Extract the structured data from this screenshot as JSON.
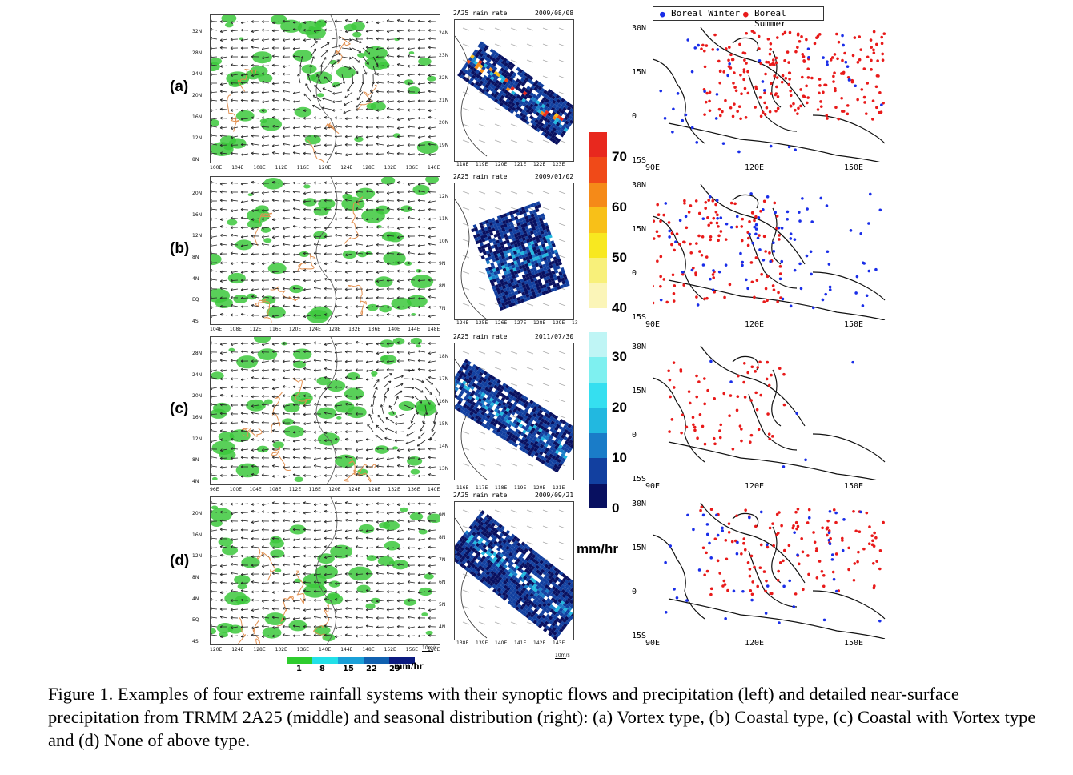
{
  "rows": [
    {
      "label": "(a)",
      "date": "2009/08/08"
    },
    {
      "label": "(b)",
      "date": "2009/01/02"
    },
    {
      "label": "(c)",
      "date": "2011/07/30"
    },
    {
      "label": "(d)",
      "date": "2009/09/21"
    }
  ],
  "mid_title": "2A25 rain rate",
  "left_ticks": {
    "a": {
      "y": [
        "32N",
        "28N",
        "24N",
        "20N",
        "16N",
        "12N",
        "8N"
      ],
      "x": [
        "100E",
        "104E",
        "108E",
        "112E",
        "116E",
        "120E",
        "124E",
        "128E",
        "132E",
        "136E",
        "140E"
      ]
    },
    "b": {
      "y": [
        "20N",
        "16N",
        "12N",
        "8N",
        "4N",
        "EQ",
        "4S"
      ],
      "x": [
        "104E",
        "108E",
        "112E",
        "116E",
        "120E",
        "124E",
        "128E",
        "132E",
        "136E",
        "140E",
        "144E",
        "148E"
      ]
    },
    "c": {
      "y": [
        "28N",
        "24N",
        "20N",
        "16N",
        "12N",
        "8N",
        "4N"
      ],
      "x": [
        "96E",
        "100E",
        "104E",
        "108E",
        "112E",
        "116E",
        "120E",
        "124E",
        "128E",
        "132E",
        "136E",
        "140E"
      ]
    },
    "d": {
      "y": [
        "20N",
        "16N",
        "12N",
        "8N",
        "4N",
        "EQ",
        "4S"
      ],
      "x": [
        "120E",
        "124E",
        "128E",
        "132E",
        "136E",
        "140E",
        "144E",
        "148E",
        "152E",
        "156E",
        "160E"
      ]
    }
  },
  "mid_ticks": {
    "a": {
      "y": [
        "24N",
        "23N",
        "22N",
        "21N",
        "20N",
        "19N"
      ],
      "x": [
        "118E",
        "119E",
        "120E",
        "121E",
        "122E",
        "123E"
      ]
    },
    "b": {
      "y": [
        "12N",
        "11N",
        "10N",
        "9N",
        "8N",
        "7N"
      ],
      "x": [
        "124E",
        "125E",
        "126E",
        "127E",
        "128E",
        "129E",
        "13"
      ]
    },
    "c": {
      "y": [
        "18N",
        "17N",
        "16N",
        "15N",
        "14N",
        "13N"
      ],
      "x": [
        "116E",
        "117E",
        "118E",
        "119E",
        "120E",
        "121E"
      ]
    },
    "d": {
      "y": [
        "9N",
        "8N",
        "7N",
        "6N",
        "5N",
        "4N"
      ],
      "x": [
        "138E",
        "139E",
        "140E",
        "141E",
        "142E",
        "143E"
      ]
    }
  },
  "wind_legend": {
    "unit": "10m/s"
  },
  "left_colorbar": {
    "ticks": [
      "1",
      "8",
      "15",
      "22",
      "29"
    ],
    "unit": "mm/hr",
    "colors": [
      "#2ecc2e",
      "#22e0e8",
      "#1aa0d8",
      "#1060b0",
      "#0a1a80"
    ]
  },
  "right_colorbar": {
    "upper_ticks": [
      "70",
      "60",
      "50",
      "40"
    ],
    "lower_ticks": [
      "30",
      "20",
      "10",
      "0"
    ],
    "unit": "mm/hr",
    "upper_colors": [
      "#e8281e",
      "#f04a18",
      "#f58a18",
      "#f8c018",
      "#f8e820",
      "#f8f07a",
      "#fbf5b8"
    ],
    "lower_colors": [
      "#bff5f5",
      "#7ef0f0",
      "#35dff0",
      "#22b8e0",
      "#1a7cc8",
      "#1240a0",
      "#081060"
    ]
  },
  "legend": {
    "winter": "Boreal Winter",
    "summer": "Boreal Summer",
    "winter_color": "#1a2ee8",
    "summer_color": "#e81a1a"
  },
  "map_ticks": {
    "y": [
      "30N",
      "15N",
      "0",
      "15S"
    ],
    "x": [
      "90E",
      "120E",
      "150E"
    ]
  },
  "caption": "Figure 1. Examples of four extreme rainfall systems with their synoptic flows and precipitation (left) and detailed near-surface precipitation from TRMM 2A25 (middle) and seasonal distribution (right): (a) Vortex type, (b) Coastal type, (c) Coastal with Vortex type and (d) None of above type."
}
